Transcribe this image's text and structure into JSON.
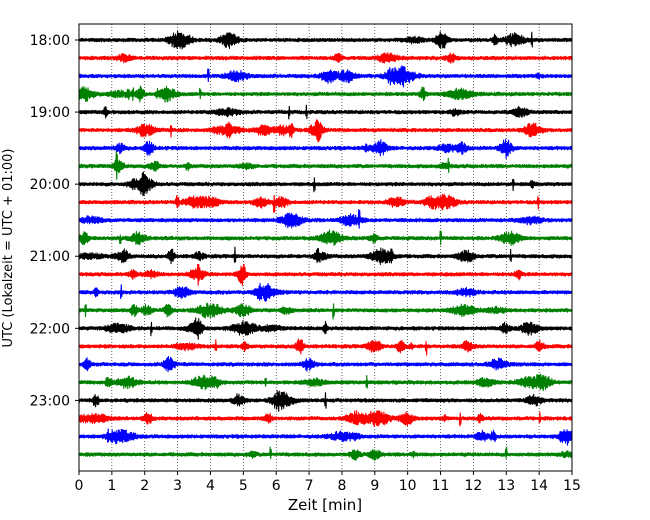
{
  "chart_data": {
    "type": "line",
    "title": "",
    "xlabel": "Zeit  [min]",
    "ylabel": "UTC (Lokalzeit = UTC + 01:00)",
    "xlim": [
      0,
      15
    ],
    "x_ticks": [
      "0",
      "1",
      "2",
      "3",
      "4",
      "5",
      "6",
      "7",
      "8",
      "9",
      "10",
      "11",
      "12",
      "13",
      "14",
      "15"
    ],
    "y_ticks": [
      "18:00",
      "19:00",
      "20:00",
      "21:00",
      "22:00",
      "23:00"
    ],
    "grid": "vertical-dotted",
    "trace_colors": [
      "#000000",
      "#ff0000",
      "#0000ff",
      "#008000"
    ],
    "series": [
      {
        "start": "18:00",
        "color": "#000000"
      },
      {
        "start": "18:15",
        "color": "#ff0000"
      },
      {
        "start": "18:30",
        "color": "#0000ff"
      },
      {
        "start": "18:45",
        "color": "#008000"
      },
      {
        "start": "19:00",
        "color": "#000000"
      },
      {
        "start": "19:15",
        "color": "#ff0000"
      },
      {
        "start": "19:30",
        "color": "#0000ff"
      },
      {
        "start": "19:45",
        "color": "#008000"
      },
      {
        "start": "20:00",
        "color": "#000000"
      },
      {
        "start": "20:15",
        "color": "#ff0000"
      },
      {
        "start": "20:30",
        "color": "#0000ff"
      },
      {
        "start": "20:45",
        "color": "#008000"
      },
      {
        "start": "21:00",
        "color": "#000000"
      },
      {
        "start": "21:15",
        "color": "#ff0000"
      },
      {
        "start": "21:30",
        "color": "#0000ff"
      },
      {
        "start": "21:45",
        "color": "#008000"
      },
      {
        "start": "22:00",
        "color": "#000000"
      },
      {
        "start": "22:15",
        "color": "#ff0000"
      },
      {
        "start": "22:30",
        "color": "#0000ff"
      },
      {
        "start": "22:45",
        "color": "#008000"
      },
      {
        "start": "23:00",
        "color": "#000000"
      },
      {
        "start": "23:15",
        "color": "#ff0000"
      },
      {
        "start": "23:30",
        "color": "#0000ff"
      },
      {
        "start": "23:45",
        "color": "#008000"
      }
    ]
  }
}
